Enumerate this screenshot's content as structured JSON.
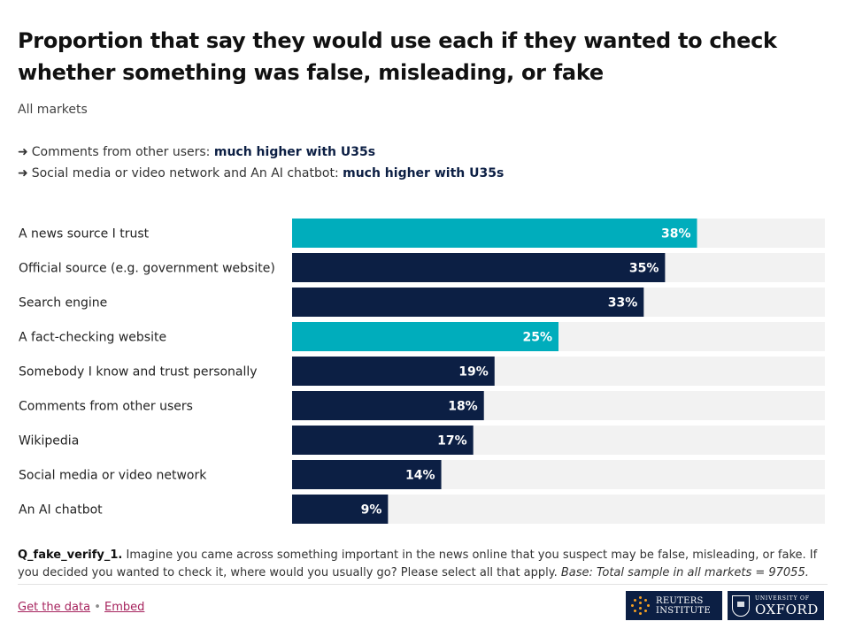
{
  "header": {
    "title": "Proportion that say they would use each if they wanted to check whether something was false, misleading, or fake",
    "subtitle": "All markets"
  },
  "notes": [
    {
      "arrow": "➜",
      "text": "Comments from other users: ",
      "emphasis": "much higher with U35s"
    },
    {
      "arrow": "➜",
      "text": "Social media or video network and An AI chatbot: ",
      "emphasis": "much higher with U35s"
    }
  ],
  "chart_data": {
    "type": "bar",
    "orientation": "horizontal",
    "categories": [
      "A news source I trust",
      "Official source (e.g. government website)",
      "Search engine",
      "A fact-checking website",
      "Somebody I know and trust personally",
      "Comments from other users",
      "Wikipedia",
      "Social media or video network",
      "An AI chatbot"
    ],
    "values": [
      38,
      35,
      33,
      25,
      19,
      18,
      17,
      14,
      9
    ],
    "value_labels": [
      "38%",
      "35%",
      "33%",
      "25%",
      "19%",
      "18%",
      "17%",
      "14%",
      "9%"
    ],
    "highlighted": [
      true,
      false,
      false,
      true,
      false,
      false,
      false,
      false,
      false
    ],
    "xlim": [
      0,
      50
    ],
    "colors": {
      "highlight": "#00adbc",
      "default": "#0c1f44",
      "track": "#f2f2f2"
    }
  },
  "footer": {
    "question_id": "Q_fake_verify_1.",
    "question_text": " Imagine you came across something important in the news online that you suspect may be false, misleading, or fake. If you decided you wanted to check it, where would you usually go? Please select all that apply. ",
    "base": "Base: Total sample in all markets = 97055."
  },
  "links": {
    "data": "Get the data",
    "separator": "•",
    "embed": "Embed"
  },
  "logos": {
    "reuters_line1": "REUTERS",
    "reuters_line2": "INSTITUTE",
    "oxford_small": "UNIVERSITY OF",
    "oxford_big": "OXFORD"
  }
}
